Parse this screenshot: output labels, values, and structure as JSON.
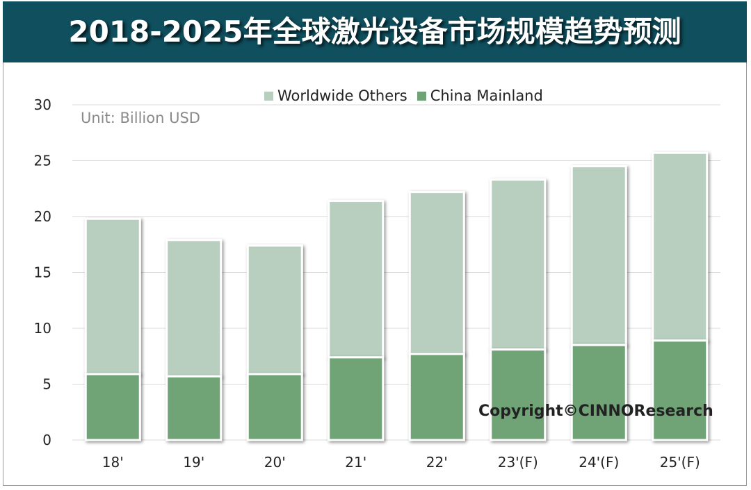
{
  "title": "2018-2025年全球激光设备市场规模趋势预测",
  "unit_label": "Unit: Billion USD",
  "copyright": "Copyright©CINNOResearch",
  "colors": {
    "title_bg": "#0f4f5e",
    "others": "#b8cfc0",
    "china": "#6fa376"
  },
  "chart_data": {
    "type": "bar",
    "stacked": true,
    "categories": [
      "18'",
      "19'",
      "20'",
      "21'",
      "22'",
      "23'(F)",
      "24'(F)",
      "25'(F)"
    ],
    "series": [
      {
        "name": "China Mainland",
        "values": [
          5.9,
          5.7,
          5.9,
          7.4,
          7.7,
          8.1,
          8.5,
          8.9
        ]
      },
      {
        "name": "Worldwide Others",
        "values": [
          13.9,
          12.2,
          11.5,
          14.0,
          14.5,
          15.2,
          16.0,
          16.8
        ]
      }
    ],
    "ylim": [
      0,
      30
    ],
    "yticks": [
      0,
      5,
      10,
      15,
      20,
      25,
      30
    ],
    "grid": true,
    "legend_position": "top-center"
  }
}
